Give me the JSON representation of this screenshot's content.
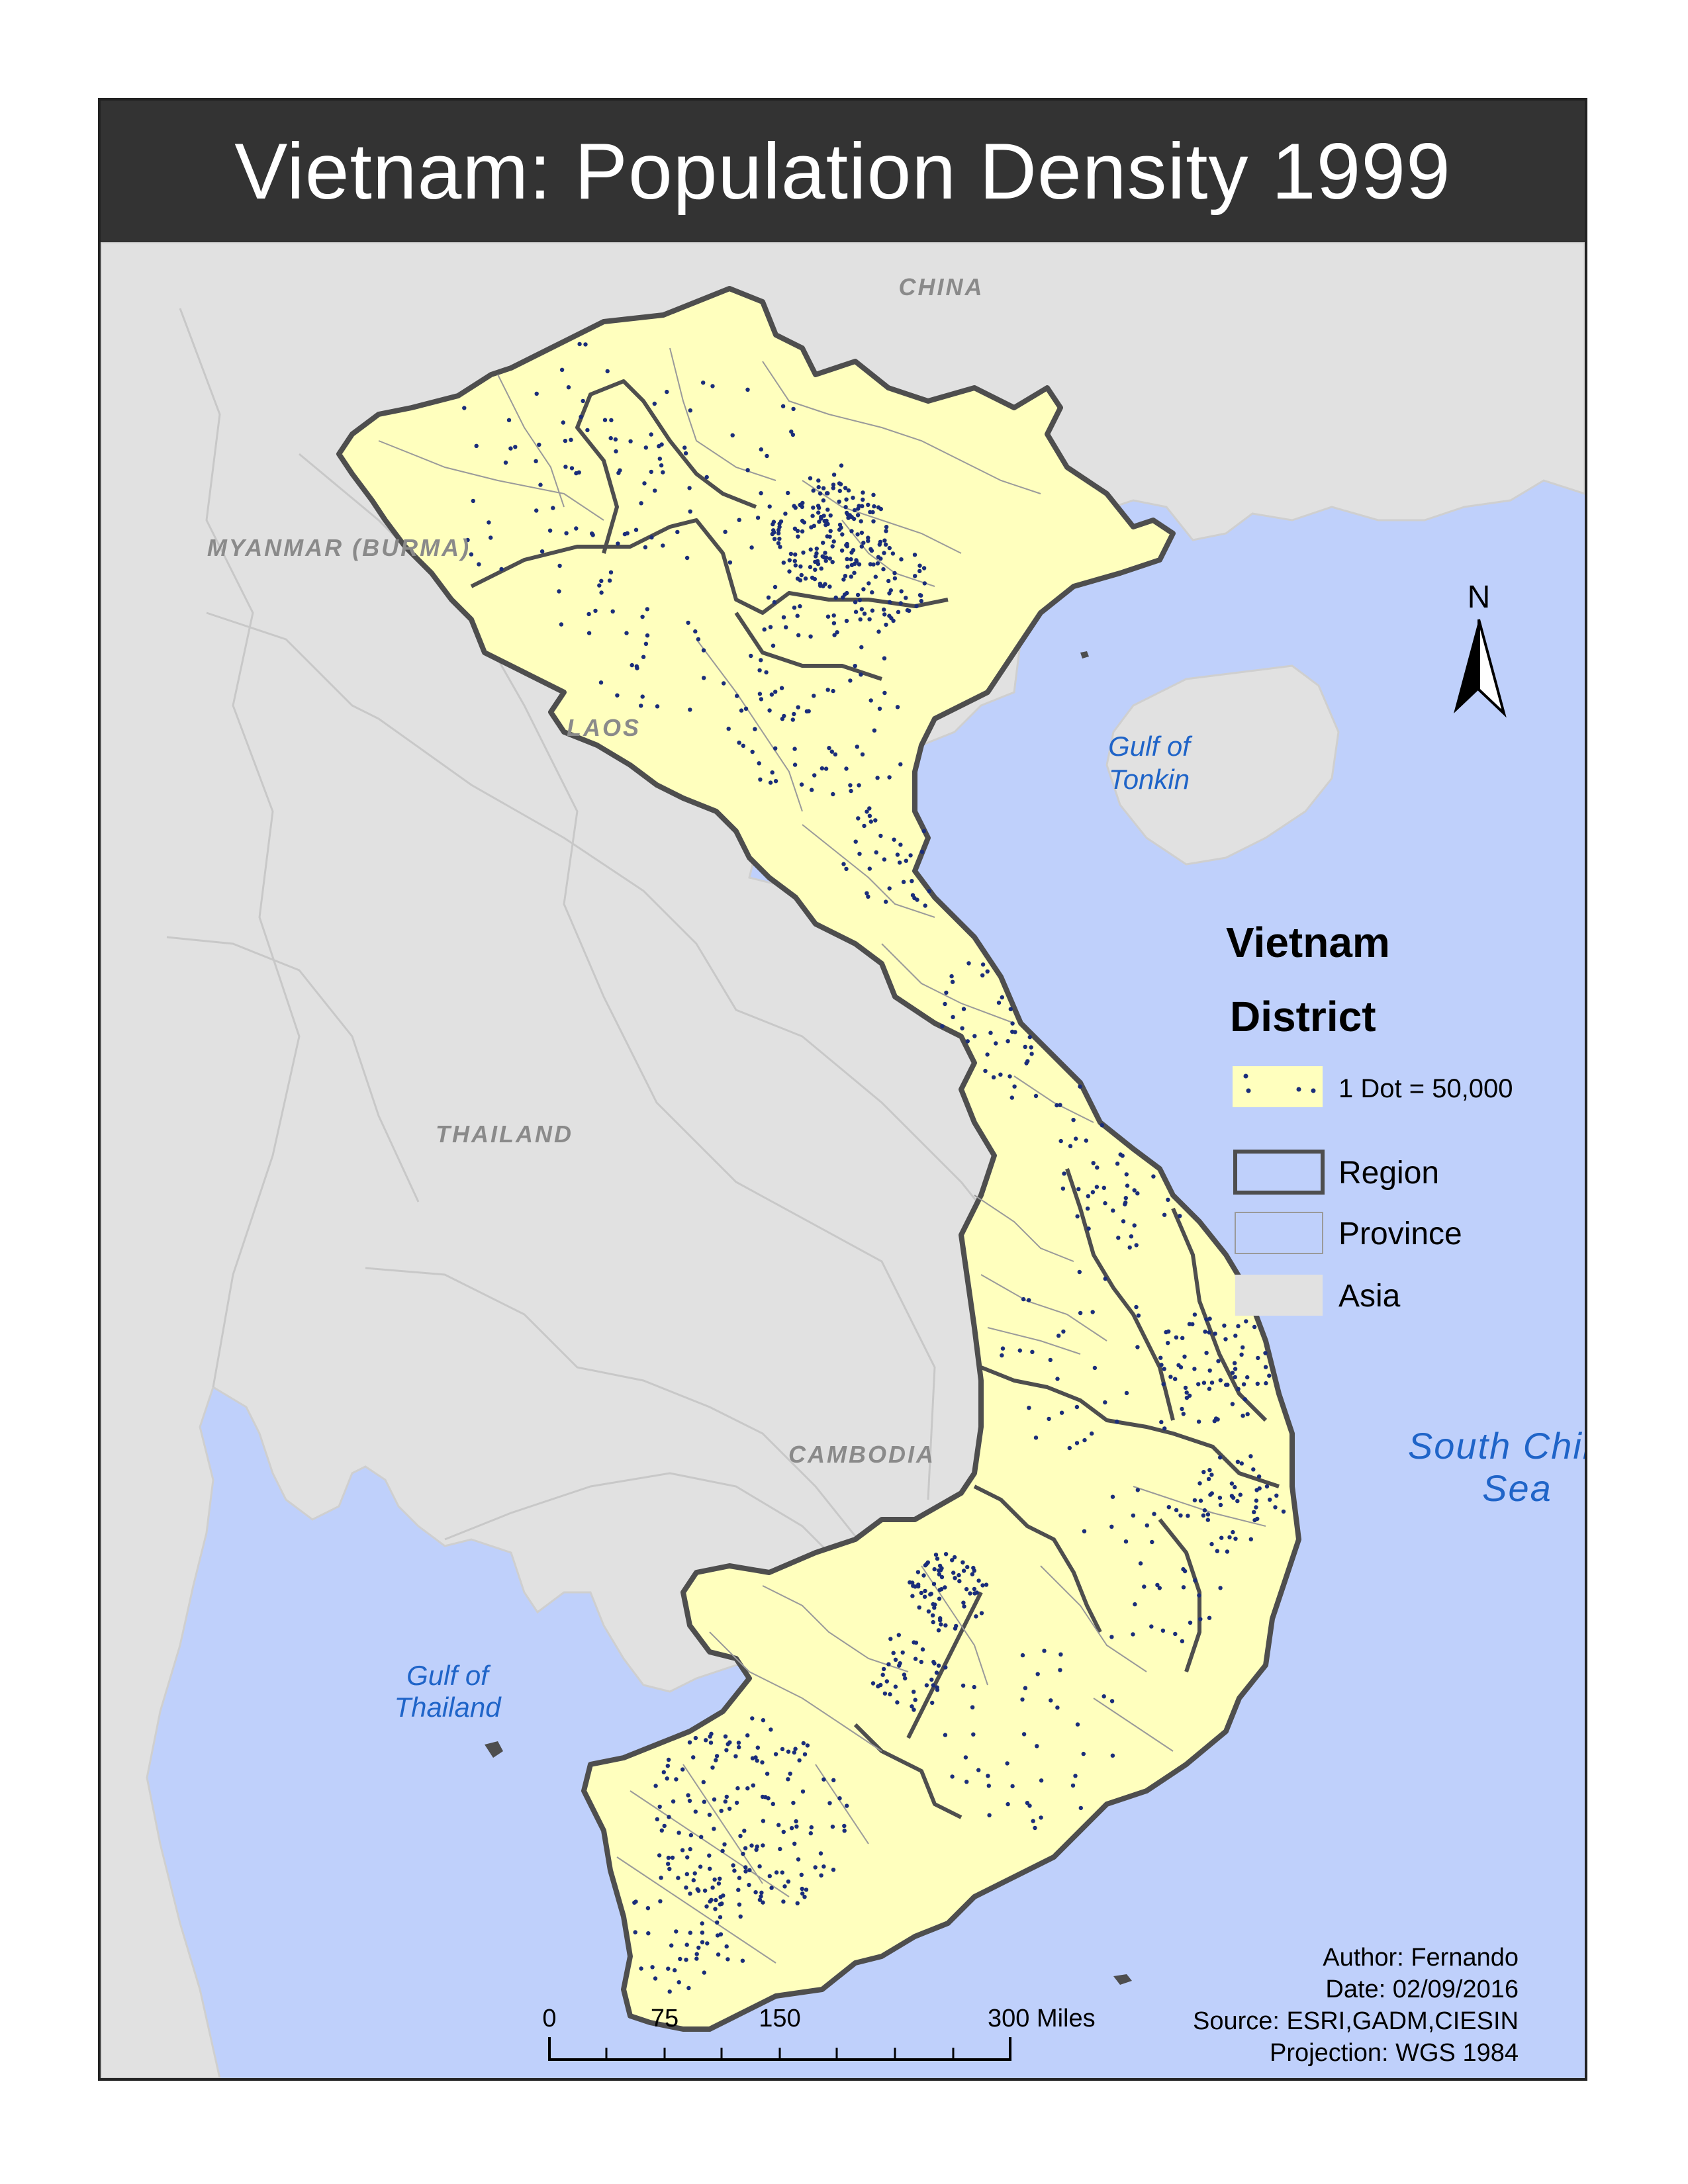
{
  "title": "Vietnam: Population Density 1999",
  "labels": {
    "china": "CHINA",
    "myanmar": "MYANMAR (BURMA)",
    "laos": "LAOS",
    "thailand": "THAILAND",
    "cambodia": "CAMBODIA",
    "gulf_tonkin_1": "Gulf of",
    "gulf_tonkin_2": "Tonkin",
    "gulf_thailand_1": "Gulf of",
    "gulf_thailand_2": "Thailand",
    "scs_1": "South China",
    "scs_2": "Sea"
  },
  "north_arrow": {
    "label": "N"
  },
  "legend": {
    "title": "Vietnam",
    "subtitle": "District",
    "items": [
      {
        "label": "1 Dot = 50,000",
        "kind": "dots"
      },
      {
        "label": "Region",
        "kind": "region"
      },
      {
        "label": "Province",
        "kind": "province"
      },
      {
        "label": "Asia",
        "kind": "asia"
      }
    ]
  },
  "scale_bar": {
    "ticks": [
      "0",
      "75",
      "150",
      "300 Miles"
    ]
  },
  "credits": {
    "author": "Author: Fernando",
    "date": "Date: 02/09/2016",
    "source": "Source: ESRI,GADM,CIESIN",
    "projection": "Projection: WGS 1984"
  },
  "colors": {
    "water": "#bfd0fb",
    "land": "#e1e1e1",
    "vietnam": "#ffffbe",
    "region_border": "#4e4e4e",
    "dots": "#1a2d7a",
    "title_bar": "#333333"
  }
}
